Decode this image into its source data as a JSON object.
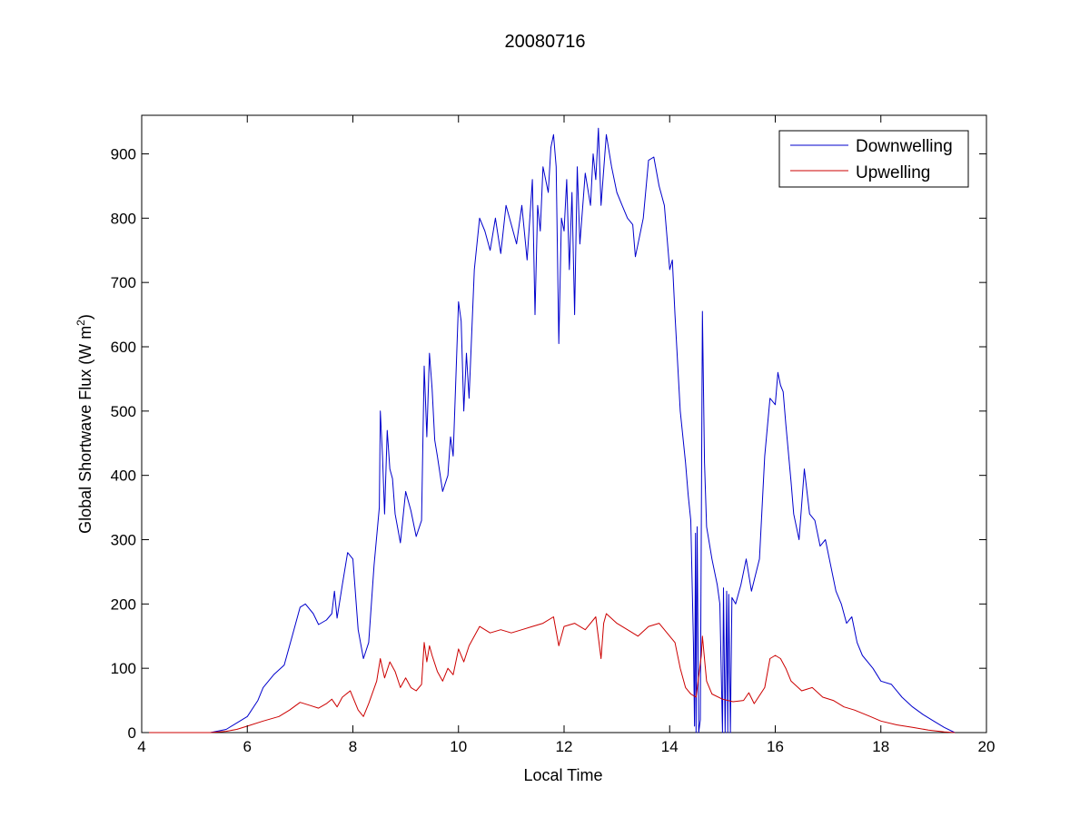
{
  "chart_data": {
    "type": "line",
    "title": "20080716",
    "xlabel": "Local Time",
    "ylabel": "Global Shortwave Flux (W m",
    "ylabel_sup": "2",
    "ylabel_suffix": ")",
    "xlim": [
      4,
      20
    ],
    "ylim": [
      0,
      960
    ],
    "xticks": [
      4,
      6,
      8,
      10,
      12,
      14,
      16,
      18,
      20
    ],
    "yticks": [
      0,
      100,
      200,
      300,
      400,
      500,
      600,
      700,
      800,
      900
    ],
    "grid": false,
    "legend_position": "top-right",
    "series": [
      {
        "name": "Downwelling",
        "color": "#0000cc",
        "points": [
          [
            4.0,
            0
          ],
          [
            4.8,
            0
          ],
          [
            5.3,
            0
          ],
          [
            5.6,
            5
          ],
          [
            5.8,
            15
          ],
          [
            6.0,
            25
          ],
          [
            6.2,
            50
          ],
          [
            6.3,
            70
          ],
          [
            6.5,
            90
          ],
          [
            6.7,
            105
          ],
          [
            6.85,
            150
          ],
          [
            7.0,
            195
          ],
          [
            7.1,
            200
          ],
          [
            7.25,
            185
          ],
          [
            7.35,
            168
          ],
          [
            7.5,
            175
          ],
          [
            7.6,
            185
          ],
          [
            7.65,
            220
          ],
          [
            7.7,
            178
          ],
          [
            7.8,
            230
          ],
          [
            7.9,
            280
          ],
          [
            8.0,
            270
          ],
          [
            8.1,
            160
          ],
          [
            8.2,
            115
          ],
          [
            8.3,
            140
          ],
          [
            8.4,
            260
          ],
          [
            8.5,
            350
          ],
          [
            8.52,
            500
          ],
          [
            8.56,
            430
          ],
          [
            8.6,
            340
          ],
          [
            8.65,
            470
          ],
          [
            8.7,
            410
          ],
          [
            8.75,
            395
          ],
          [
            8.8,
            340
          ],
          [
            8.9,
            295
          ],
          [
            9.0,
            375
          ],
          [
            9.1,
            345
          ],
          [
            9.2,
            305
          ],
          [
            9.3,
            330
          ],
          [
            9.35,
            570
          ],
          [
            9.4,
            460
          ],
          [
            9.45,
            590
          ],
          [
            9.5,
            535
          ],
          [
            9.55,
            455
          ],
          [
            9.6,
            430
          ],
          [
            9.7,
            375
          ],
          [
            9.8,
            400
          ],
          [
            9.85,
            460
          ],
          [
            9.9,
            430
          ],
          [
            10.0,
            670
          ],
          [
            10.05,
            640
          ],
          [
            10.1,
            500
          ],
          [
            10.15,
            590
          ],
          [
            10.2,
            520
          ],
          [
            10.3,
            720
          ],
          [
            10.4,
            800
          ],
          [
            10.5,
            780
          ],
          [
            10.6,
            750
          ],
          [
            10.7,
            800
          ],
          [
            10.8,
            745
          ],
          [
            10.9,
            820
          ],
          [
            11.0,
            790
          ],
          [
            11.1,
            760
          ],
          [
            11.2,
            820
          ],
          [
            11.3,
            735
          ],
          [
            11.4,
            860
          ],
          [
            11.45,
            650
          ],
          [
            11.5,
            820
          ],
          [
            11.55,
            780
          ],
          [
            11.6,
            880
          ],
          [
            11.7,
            840
          ],
          [
            11.75,
            910
          ],
          [
            11.8,
            930
          ],
          [
            11.85,
            880
          ],
          [
            11.9,
            605
          ],
          [
            11.95,
            800
          ],
          [
            12.0,
            780
          ],
          [
            12.05,
            860
          ],
          [
            12.1,
            720
          ],
          [
            12.15,
            840
          ],
          [
            12.2,
            650
          ],
          [
            12.25,
            880
          ],
          [
            12.3,
            760
          ],
          [
            12.4,
            870
          ],
          [
            12.5,
            820
          ],
          [
            12.55,
            900
          ],
          [
            12.6,
            860
          ],
          [
            12.65,
            940
          ],
          [
            12.7,
            820
          ],
          [
            12.8,
            930
          ],
          [
            12.9,
            880
          ],
          [
            13.0,
            840
          ],
          [
            13.1,
            820
          ],
          [
            13.2,
            800
          ],
          [
            13.3,
            790
          ],
          [
            13.35,
            740
          ],
          [
            13.4,
            760
          ],
          [
            13.5,
            800
          ],
          [
            13.6,
            890
          ],
          [
            13.7,
            895
          ],
          [
            13.8,
            850
          ],
          [
            13.9,
            820
          ],
          [
            14.0,
            720
          ],
          [
            14.05,
            735
          ],
          [
            14.1,
            650
          ],
          [
            14.2,
            500
          ],
          [
            14.3,
            420
          ],
          [
            14.35,
            370
          ],
          [
            14.4,
            330
          ],
          [
            14.45,
            140
          ],
          [
            14.47,
            10
          ],
          [
            14.49,
            310
          ],
          [
            14.5,
            0
          ],
          [
            14.52,
            320
          ],
          [
            14.55,
            0
          ],
          [
            14.58,
            20
          ],
          [
            14.62,
            655
          ],
          [
            14.66,
            420
          ],
          [
            14.7,
            320
          ],
          [
            14.8,
            270
          ],
          [
            14.9,
            230
          ],
          [
            14.95,
            200
          ],
          [
            15.0,
            0
          ],
          [
            15.02,
            225
          ],
          [
            15.05,
            0
          ],
          [
            15.08,
            220
          ],
          [
            15.1,
            0
          ],
          [
            15.12,
            215
          ],
          [
            15.15,
            0
          ],
          [
            15.18,
            210
          ],
          [
            15.25,
            200
          ],
          [
            15.35,
            230
          ],
          [
            15.45,
            270
          ],
          [
            15.55,
            220
          ],
          [
            15.7,
            270
          ],
          [
            15.8,
            430
          ],
          [
            15.9,
            520
          ],
          [
            16.0,
            510
          ],
          [
            16.05,
            560
          ],
          [
            16.1,
            540
          ],
          [
            16.15,
            530
          ],
          [
            16.2,
            480
          ],
          [
            16.3,
            390
          ],
          [
            16.35,
            340
          ],
          [
            16.45,
            300
          ],
          [
            16.55,
            410
          ],
          [
            16.65,
            340
          ],
          [
            16.75,
            330
          ],
          [
            16.85,
            290
          ],
          [
            16.95,
            300
          ],
          [
            17.05,
            260
          ],
          [
            17.15,
            220
          ],
          [
            17.25,
            200
          ],
          [
            17.35,
            170
          ],
          [
            17.45,
            180
          ],
          [
            17.55,
            140
          ],
          [
            17.65,
            120
          ],
          [
            17.85,
            100
          ],
          [
            18.0,
            80
          ],
          [
            18.2,
            75
          ],
          [
            18.4,
            55
          ],
          [
            18.6,
            40
          ],
          [
            18.8,
            28
          ],
          [
            19.0,
            18
          ],
          [
            19.2,
            8
          ],
          [
            19.4,
            0
          ]
        ]
      },
      {
        "name": "Upwelling",
        "color": "#cc0000",
        "points": [
          [
            4.0,
            0
          ],
          [
            4.8,
            0
          ],
          [
            5.3,
            0
          ],
          [
            5.6,
            2
          ],
          [
            5.8,
            5
          ],
          [
            6.0,
            10
          ],
          [
            6.3,
            18
          ],
          [
            6.6,
            25
          ],
          [
            6.8,
            35
          ],
          [
            7.0,
            47
          ],
          [
            7.2,
            42
          ],
          [
            7.35,
            38
          ],
          [
            7.5,
            45
          ],
          [
            7.6,
            52
          ],
          [
            7.7,
            40
          ],
          [
            7.8,
            55
          ],
          [
            7.95,
            65
          ],
          [
            8.1,
            35
          ],
          [
            8.2,
            25
          ],
          [
            8.3,
            45
          ],
          [
            8.45,
            80
          ],
          [
            8.52,
            115
          ],
          [
            8.6,
            85
          ],
          [
            8.7,
            110
          ],
          [
            8.8,
            95
          ],
          [
            8.9,
            70
          ],
          [
            9.0,
            85
          ],
          [
            9.1,
            70
          ],
          [
            9.2,
            65
          ],
          [
            9.3,
            75
          ],
          [
            9.35,
            140
          ],
          [
            9.4,
            110
          ],
          [
            9.45,
            135
          ],
          [
            9.5,
            120
          ],
          [
            9.6,
            95
          ],
          [
            9.7,
            80
          ],
          [
            9.8,
            100
          ],
          [
            9.9,
            90
          ],
          [
            10.0,
            130
          ],
          [
            10.1,
            110
          ],
          [
            10.2,
            135
          ],
          [
            10.3,
            150
          ],
          [
            10.4,
            165
          ],
          [
            10.6,
            155
          ],
          [
            10.8,
            160
          ],
          [
            11.0,
            155
          ],
          [
            11.2,
            160
          ],
          [
            11.4,
            165
          ],
          [
            11.6,
            170
          ],
          [
            11.8,
            180
          ],
          [
            11.9,
            135
          ],
          [
            12.0,
            165
          ],
          [
            12.2,
            170
          ],
          [
            12.4,
            160
          ],
          [
            12.6,
            180
          ],
          [
            12.7,
            115
          ],
          [
            12.75,
            170
          ],
          [
            12.8,
            185
          ],
          [
            13.0,
            170
          ],
          [
            13.2,
            160
          ],
          [
            13.4,
            150
          ],
          [
            13.6,
            165
          ],
          [
            13.8,
            170
          ],
          [
            14.0,
            150
          ],
          [
            14.1,
            140
          ],
          [
            14.2,
            100
          ],
          [
            14.3,
            70
          ],
          [
            14.4,
            60
          ],
          [
            14.5,
            55
          ],
          [
            14.6,
            120
          ],
          [
            14.62,
            150
          ],
          [
            14.7,
            80
          ],
          [
            14.8,
            60
          ],
          [
            15.0,
            52
          ],
          [
            15.2,
            48
          ],
          [
            15.4,
            50
          ],
          [
            15.5,
            62
          ],
          [
            15.6,
            45
          ],
          [
            15.8,
            70
          ],
          [
            15.9,
            115
          ],
          [
            16.0,
            120
          ],
          [
            16.1,
            115
          ],
          [
            16.2,
            100
          ],
          [
            16.3,
            80
          ],
          [
            16.5,
            65
          ],
          [
            16.7,
            70
          ],
          [
            16.9,
            55
          ],
          [
            17.1,
            50
          ],
          [
            17.3,
            40
          ],
          [
            17.5,
            35
          ],
          [
            17.8,
            25
          ],
          [
            18.0,
            18
          ],
          [
            18.3,
            12
          ],
          [
            18.6,
            8
          ],
          [
            18.9,
            4
          ],
          [
            19.2,
            1
          ],
          [
            19.4,
            0
          ]
        ]
      }
    ]
  }
}
